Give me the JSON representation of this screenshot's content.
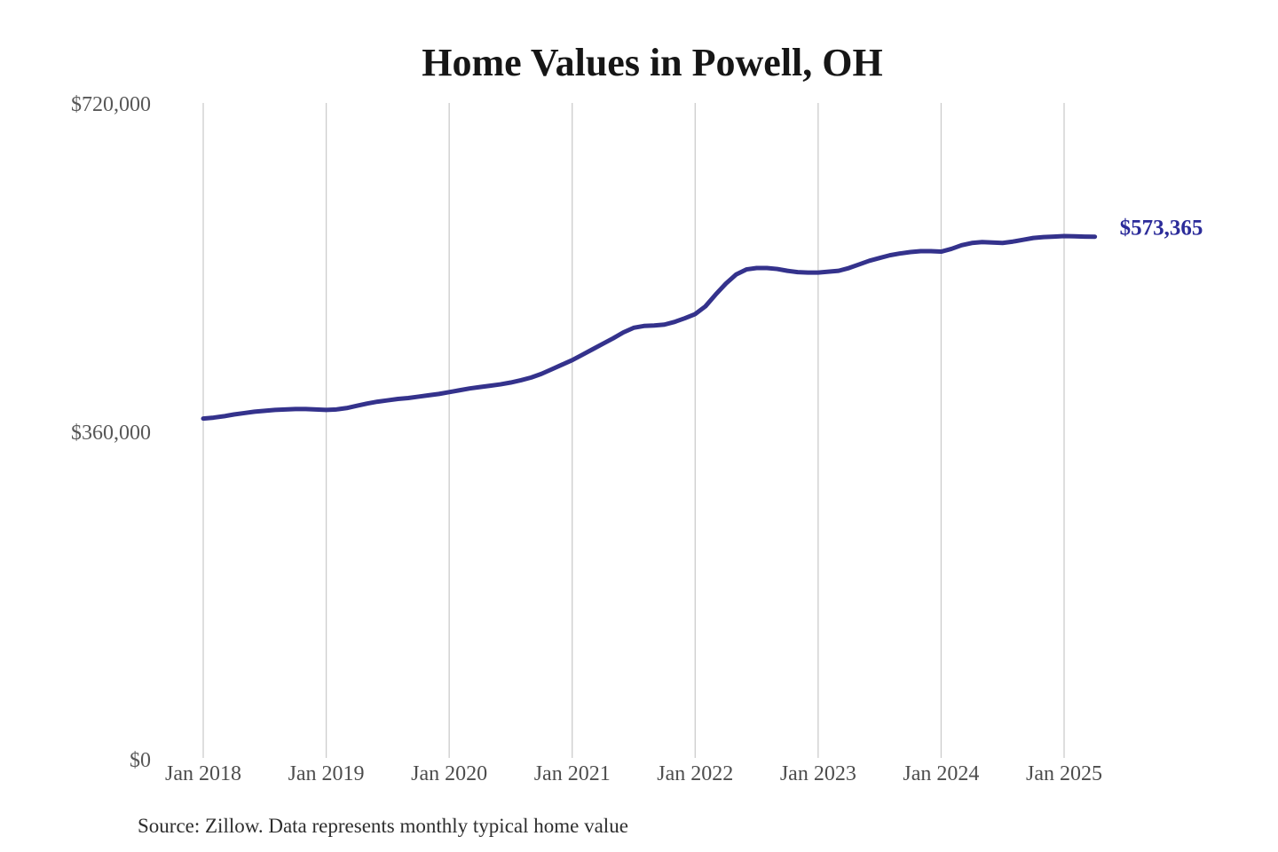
{
  "title": "Home Values in Powell, OH",
  "source_note": "Source: Zillow. Data represents monthly typical home value",
  "colors": {
    "background": "#ffffff",
    "line": "#34328c",
    "end_label": "#2c2c9a",
    "grid": "#cccccc",
    "title_text": "#161616",
    "y_tick_text": "#575757",
    "x_tick_text": "#4d4d4d",
    "source_text": "#2e2e2e"
  },
  "chart_data": {
    "type": "line",
    "title": "Home Values in Powell, OH",
    "xlabel": "",
    "ylabel": "",
    "ylim": [
      0,
      720000
    ],
    "grid": "vertical-only",
    "legend": "none",
    "y_tick_values": [
      0,
      360000,
      720000
    ],
    "y_tick_labels": [
      "$0",
      "$360,000",
      "$720,000"
    ],
    "x_tick_labels": [
      "Jan 2018",
      "Jan 2019",
      "Jan 2020",
      "Jan 2021",
      "Jan 2022",
      "Jan 2023",
      "Jan 2024",
      "Jan 2025"
    ],
    "final_value": 573365,
    "final_value_label": "$573,365",
    "series": [
      {
        "name": "Typical home value",
        "start_month": "2018-01",
        "end_month": "2025-04",
        "frequency": "monthly",
        "values": [
          374000,
          375000,
          376500,
          378500,
          380000,
          381500,
          382500,
          383500,
          384000,
          384500,
          384500,
          384000,
          383500,
          384000,
          385500,
          388000,
          390500,
          392500,
          394000,
          395500,
          396500,
          398000,
          399500,
          401000,
          403000,
          405000,
          407000,
          408500,
          410000,
          411500,
          413500,
          416000,
          419000,
          423000,
          428000,
          433000,
          438000,
          444000,
          450000,
          456000,
          462000,
          468500,
          473500,
          475500,
          476000,
          477000,
          480000,
          484000,
          488500,
          497000,
          510000,
          522000,
          532000,
          537500,
          539000,
          539000,
          538000,
          536000,
          534500,
          534000,
          534000,
          535000,
          536000,
          539000,
          543000,
          547000,
          550000,
          553000,
          555000,
          556500,
          557500,
          557500,
          557000,
          560000,
          564000,
          566500,
          567500,
          567000,
          566500,
          568000,
          570000,
          572000,
          573000,
          573500,
          574000,
          573800,
          573500,
          573365
        ]
      }
    ]
  }
}
